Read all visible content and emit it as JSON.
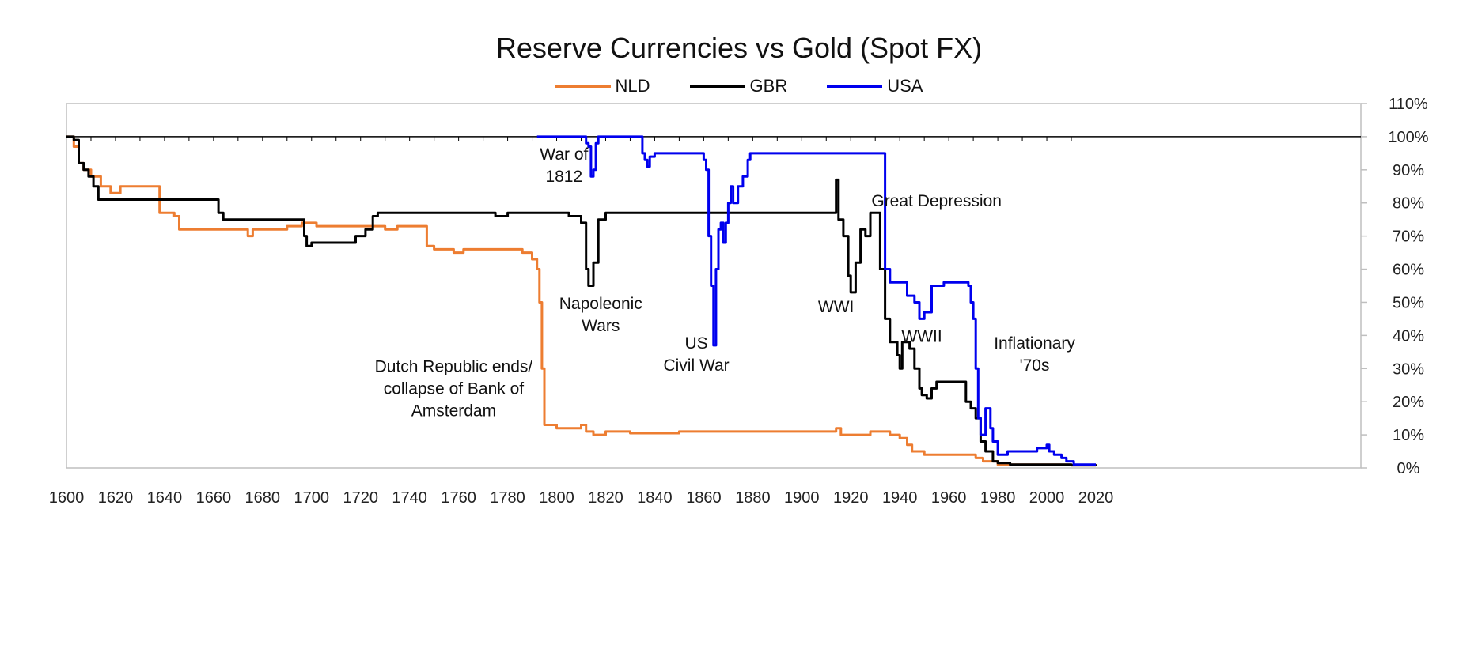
{
  "chart_data": {
    "type": "line",
    "title": "Reserve Currencies vs Gold (Spot FX)",
    "xlabel": "",
    "ylabel": "",
    "xlim": [
      1600,
      2020
    ],
    "ylim": [
      0,
      110
    ],
    "x_ticks": [
      "1600",
      "1620",
      "1640",
      "1660",
      "1680",
      "1700",
      "1720",
      "1740",
      "1760",
      "1780",
      "1800",
      "1820",
      "1840",
      "1860",
      "1880",
      "1900",
      "1920",
      "1940",
      "1960",
      "1980",
      "2000",
      "2020"
    ],
    "y_ticks": [
      "0%",
      "10%",
      "20%",
      "30%",
      "40%",
      "50%",
      "60%",
      "70%",
      "80%",
      "90%",
      "100%",
      "110%"
    ],
    "grid": false,
    "legend_position": "top-center",
    "series": [
      {
        "name": "NLD",
        "color": "#ed7d31",
        "points": [
          [
            1600,
            100
          ],
          [
            1603,
            97
          ],
          [
            1605,
            92
          ],
          [
            1607,
            90
          ],
          [
            1610,
            88
          ],
          [
            1614,
            85
          ],
          [
            1618,
            83
          ],
          [
            1622,
            85
          ],
          [
            1630,
            85
          ],
          [
            1636,
            85
          ],
          [
            1638,
            77
          ],
          [
            1644,
            76
          ],
          [
            1646,
            72
          ],
          [
            1660,
            72
          ],
          [
            1670,
            72
          ],
          [
            1674,
            70
          ],
          [
            1676,
            72
          ],
          [
            1685,
            72
          ],
          [
            1690,
            73
          ],
          [
            1696,
            74
          ],
          [
            1702,
            73
          ],
          [
            1710,
            73
          ],
          [
            1720,
            73
          ],
          [
            1727,
            73
          ],
          [
            1730,
            72
          ],
          [
            1735,
            73
          ],
          [
            1740,
            73
          ],
          [
            1745,
            73
          ],
          [
            1747,
            67
          ],
          [
            1750,
            66
          ],
          [
            1758,
            65
          ],
          [
            1762,
            66
          ],
          [
            1765,
            66
          ],
          [
            1775,
            66
          ],
          [
            1780,
            66
          ],
          [
            1786,
            65
          ],
          [
            1790,
            63
          ],
          [
            1792,
            60
          ],
          [
            1793,
            50
          ],
          [
            1794,
            30
          ],
          [
            1795,
            13
          ],
          [
            1800,
            12
          ],
          [
            1805,
            12
          ],
          [
            1810,
            13
          ],
          [
            1812,
            11
          ],
          [
            1815,
            10
          ],
          [
            1820,
            11
          ],
          [
            1830,
            10.5
          ],
          [
            1850,
            11
          ],
          [
            1860,
            11
          ],
          [
            1880,
            11
          ],
          [
            1900,
            11
          ],
          [
            1912,
            11
          ],
          [
            1914,
            12
          ],
          [
            1916,
            10
          ],
          [
            1920,
            10
          ],
          [
            1928,
            11
          ],
          [
            1933,
            11
          ],
          [
            1936,
            10
          ],
          [
            1940,
            9
          ],
          [
            1943,
            7
          ],
          [
            1945,
            5
          ],
          [
            1950,
            4
          ],
          [
            1955,
            4
          ],
          [
            1960,
            4
          ],
          [
            1967,
            4
          ],
          [
            1971,
            3
          ],
          [
            1974,
            2
          ],
          [
            1980,
            1
          ],
          [
            2000,
            1
          ],
          [
            2010,
            0.8
          ],
          [
            2020,
            0.6
          ]
        ]
      },
      {
        "name": "GBR",
        "color": "#000000",
        "points": [
          [
            1600,
            100
          ],
          [
            1603,
            99
          ],
          [
            1605,
            92
          ],
          [
            1607,
            90
          ],
          [
            1609,
            88
          ],
          [
            1611,
            85
          ],
          [
            1613,
            81
          ],
          [
            1620,
            81
          ],
          [
            1640,
            81
          ],
          [
            1660,
            81
          ],
          [
            1662,
            77
          ],
          [
            1664,
            75
          ],
          [
            1680,
            75
          ],
          [
            1695,
            75
          ],
          [
            1697,
            70
          ],
          [
            1698,
            67
          ],
          [
            1700,
            68
          ],
          [
            1710,
            68
          ],
          [
            1718,
            70
          ],
          [
            1722,
            72
          ],
          [
            1725,
            76
          ],
          [
            1727,
            77
          ],
          [
            1740,
            77
          ],
          [
            1760,
            77
          ],
          [
            1770,
            77
          ],
          [
            1775,
            76
          ],
          [
            1780,
            77
          ],
          [
            1800,
            77
          ],
          [
            1805,
            76
          ],
          [
            1808,
            76
          ],
          [
            1810,
            74
          ],
          [
            1812,
            60
          ],
          [
            1813,
            55
          ],
          [
            1814,
            55
          ],
          [
            1815,
            62
          ],
          [
            1817,
            75
          ],
          [
            1820,
            77
          ],
          [
            1840,
            77
          ],
          [
            1860,
            77
          ],
          [
            1880,
            77
          ],
          [
            1900,
            77
          ],
          [
            1913,
            77
          ],
          [
            1914,
            87
          ],
          [
            1915,
            75
          ],
          [
            1917,
            70
          ],
          [
            1919,
            58
          ],
          [
            1920,
            53
          ],
          [
            1922,
            62
          ],
          [
            1924,
            72
          ],
          [
            1926,
            70
          ],
          [
            1928,
            77
          ],
          [
            1931,
            77
          ],
          [
            1932,
            60
          ],
          [
            1934,
            45
          ],
          [
            1936,
            38
          ],
          [
            1939,
            34
          ],
          [
            1940,
            30
          ],
          [
            1941,
            38
          ],
          [
            1944,
            36
          ],
          [
            1946,
            30
          ],
          [
            1948,
            24
          ],
          [
            1949,
            22
          ],
          [
            1951,
            21
          ],
          [
            1953,
            24
          ],
          [
            1955,
            26
          ],
          [
            1958,
            26
          ],
          [
            1962,
            26
          ],
          [
            1966,
            26
          ],
          [
            1967,
            20
          ],
          [
            1969,
            18
          ],
          [
            1971,
            15
          ],
          [
            1973,
            8
          ],
          [
            1975,
            5
          ],
          [
            1978,
            2
          ],
          [
            1980,
            1.5
          ],
          [
            1985,
            1
          ],
          [
            2000,
            1
          ],
          [
            2010,
            0.8
          ],
          [
            2020,
            0.5
          ]
        ]
      },
      {
        "name": "USA",
        "color": "#0000ee",
        "points": [
          [
            1792,
            100
          ],
          [
            1810,
            100
          ],
          [
            1812,
            98
          ],
          [
            1813,
            97
          ],
          [
            1814,
            88
          ],
          [
            1815,
            90
          ],
          [
            1816,
            98
          ],
          [
            1817,
            100
          ],
          [
            1830,
            100
          ],
          [
            1834,
            100
          ],
          [
            1835,
            95
          ],
          [
            1836,
            93
          ],
          [
            1837,
            91
          ],
          [
            1838,
            94
          ],
          [
            1840,
            95
          ],
          [
            1850,
            95
          ],
          [
            1856,
            95
          ],
          [
            1860,
            93
          ],
          [
            1861,
            90
          ],
          [
            1862,
            70
          ],
          [
            1863,
            55
          ],
          [
            1864,
            37
          ],
          [
            1865,
            60
          ],
          [
            1866,
            72
          ],
          [
            1867,
            74
          ],
          [
            1868,
            68
          ],
          [
            1869,
            74
          ],
          [
            1870,
            80
          ],
          [
            1871,
            85
          ],
          [
            1872,
            80
          ],
          [
            1874,
            85
          ],
          [
            1876,
            88
          ],
          [
            1878,
            93
          ],
          [
            1879,
            95
          ],
          [
            1890,
            95
          ],
          [
            1900,
            95
          ],
          [
            1920,
            95
          ],
          [
            1933,
            95
          ],
          [
            1934,
            60
          ],
          [
            1936,
            56
          ],
          [
            1940,
            56
          ],
          [
            1943,
            52
          ],
          [
            1946,
            50
          ],
          [
            1948,
            45
          ],
          [
            1950,
            47
          ],
          [
            1953,
            55
          ],
          [
            1958,
            56
          ],
          [
            1965,
            56
          ],
          [
            1968,
            55
          ],
          [
            1969,
            50
          ],
          [
            1970,
            45
          ],
          [
            1971,
            30
          ],
          [
            1972,
            15
          ],
          [
            1973,
            10
          ],
          [
            1975,
            18
          ],
          [
            1977,
            12
          ],
          [
            1978,
            8
          ],
          [
            1980,
            4
          ],
          [
            1984,
            5
          ],
          [
            1988,
            5
          ],
          [
            1992,
            5
          ],
          [
            1996,
            6
          ],
          [
            2000,
            7
          ],
          [
            2001,
            5
          ],
          [
            2003,
            4
          ],
          [
            2006,
            3
          ],
          [
            2008,
            2
          ],
          [
            2011,
            1
          ],
          [
            2015,
            1
          ],
          [
            2020,
            1
          ]
        ]
      }
    ],
    "annotations": [
      {
        "id": "war-1812",
        "lines": [
          "War of",
          "1812"
        ],
        "x": 1803,
        "y": 93
      },
      {
        "id": "napoleonic",
        "lines": [
          "Napoleonic",
          "Wars"
        ],
        "x": 1818,
        "y": 48
      },
      {
        "id": "us-civil-war",
        "lines": [
          "US",
          "Civil War"
        ],
        "x": 1857,
        "y": 36
      },
      {
        "id": "dutch-republic",
        "lines": [
          "Dutch Republic ends/",
          "collapse of Bank of",
          "Amsterdam"
        ],
        "x": 1758,
        "y": 29
      },
      {
        "id": "wwi",
        "lines": [
          "WWI"
        ],
        "x": 1914,
        "y": 47
      },
      {
        "id": "great-depression",
        "lines": [
          "Great Depression"
        ],
        "x": 1955,
        "y": 79
      },
      {
        "id": "wwii",
        "lines": [
          "WWII"
        ],
        "x": 1949,
        "y": 38
      },
      {
        "id": "inflationary-70s",
        "lines": [
          "Inflationary",
          "'70s"
        ],
        "x": 1995,
        "y": 36
      }
    ]
  }
}
